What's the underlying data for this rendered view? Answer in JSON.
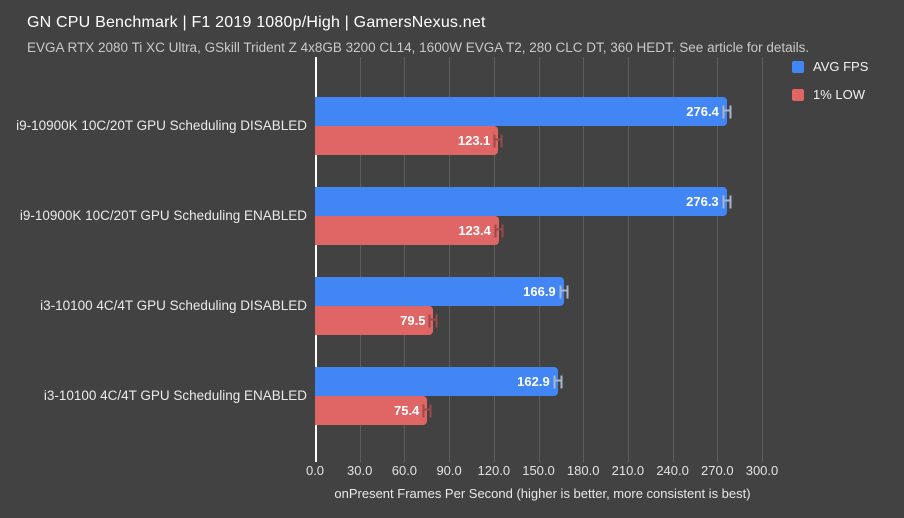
{
  "header": {
    "title": "GN CPU Benchmark | F1 2019 1080p/High | GamersNexus.net",
    "subtitle": "EVGA RTX 2080 Ti XC Ultra, GSkill Trident Z 4x8GB 3200 CL14, 1600W EVGA T2, 280 CLC DT, 360 HEDT. See article for details."
  },
  "colors": {
    "background": "#424242",
    "grid": "#5d5d5d",
    "axis": "#ffffff",
    "text": "#ffffff",
    "subtext": "#c9c9c9",
    "avg_fps": "#4285f4",
    "one_pct_low": "#e06666"
  },
  "chart_data": {
    "type": "bar",
    "orientation": "horizontal",
    "title": "GN CPU Benchmark | F1 2019 1080p/High | GamersNexus.net",
    "subtitle": "EVGA RTX 2080 Ti XC Ultra, GSkill Trident Z 4x8GB 3200 CL14, 1600W EVGA T2, 280 CLC DT, 360 HEDT. See article for details.",
    "categories": [
      "i9-10900K 10C/20T GPU Scheduling DISABLED",
      "i9-10900K 10C/20T GPU Scheduling ENABLED",
      "i3-10100 4C/4T GPU Scheduling DISABLED",
      "i3-10100 4C/4T GPU Scheduling ENABLED"
    ],
    "series": [
      {
        "name": "AVG FPS",
        "color": "#4285f4",
        "whisker_color": "#aab6c8",
        "values": [
          276.4,
          276.3,
          166.9,
          162.9
        ]
      },
      {
        "name": "1% LOW",
        "color": "#e06666",
        "whisker_color": "#9b4a4a",
        "values": [
          123.1,
          123.4,
          79.5,
          75.4
        ]
      }
    ],
    "xlabel": "onPresent Frames Per Second (higher is better, more consistent is best)",
    "xticks": [
      "0.0",
      "30.0",
      "60.0",
      "90.0",
      "120.0",
      "150.0",
      "180.0",
      "210.0",
      "240.0",
      "270.0",
      "300.0"
    ],
    "xlim": [
      0,
      300
    ],
    "grid": true,
    "legend_position": "top-right",
    "value_labels_decimals": 1
  }
}
